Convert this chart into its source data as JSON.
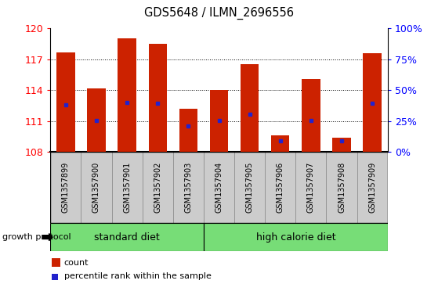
{
  "title": "GDS5648 / ILMN_2696556",
  "samples": [
    "GSM1357899",
    "GSM1357900",
    "GSM1357901",
    "GSM1357902",
    "GSM1357903",
    "GSM1357904",
    "GSM1357905",
    "GSM1357906",
    "GSM1357907",
    "GSM1357908",
    "GSM1357909"
  ],
  "bar_tops": [
    117.7,
    114.15,
    119.05,
    118.5,
    112.2,
    114.0,
    116.55,
    109.6,
    115.1,
    109.4,
    117.6
  ],
  "bar_bottoms": [
    108.0,
    108.0,
    108.0,
    108.0,
    108.0,
    108.0,
    108.0,
    108.0,
    108.0,
    108.0,
    108.0
  ],
  "percentile_values": [
    112.6,
    111.05,
    112.8,
    112.7,
    110.5,
    111.05,
    111.7,
    109.05,
    111.05,
    109.05,
    112.7
  ],
  "ylim_left": [
    108,
    120
  ],
  "ylim_right": [
    0,
    100
  ],
  "yticks_left": [
    108,
    111,
    114,
    117,
    120
  ],
  "yticks_right": [
    0,
    25,
    50,
    75,
    100
  ],
  "bar_color": "#cc2200",
  "blue_color": "#2222cc",
  "group1_label": "standard diet",
  "group2_label": "high calorie diet",
  "group1_indices": [
    0,
    1,
    2,
    3,
    4
  ],
  "group2_indices": [
    5,
    6,
    7,
    8,
    9,
    10
  ],
  "growth_protocol_label": "growth protocol",
  "legend_count": "count",
  "legend_pct": "percentile rank within the sample",
  "bar_width": 0.6,
  "label_bg": "#cccccc",
  "green_color": "#77dd77",
  "label_fontsize": 7.0,
  "axis_fontsize": 9
}
